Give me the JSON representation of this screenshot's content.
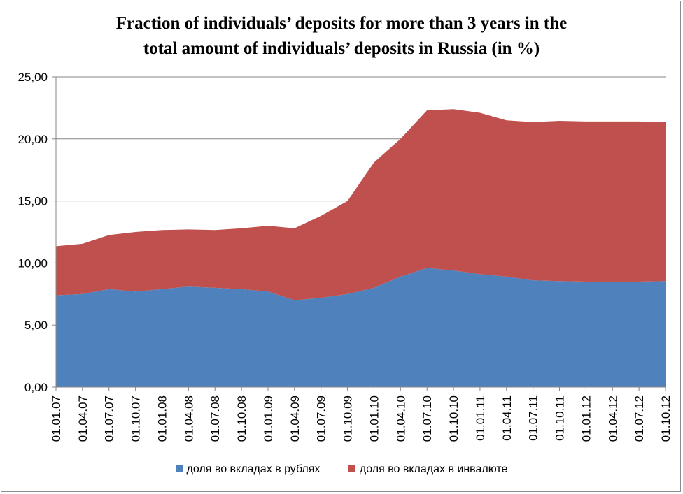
{
  "chart_data": {
    "type": "area",
    "stacked": true,
    "title_lines": [
      "Fraction of individuals’ deposits for more than 3 years in the",
      "total amount of individuals’ deposits in Russia (in %)"
    ],
    "categories": [
      "01.01.07",
      "01.04.07",
      "01.07.07",
      "01.10.07",
      "01.01.08",
      "01.04.08",
      "01.07.08",
      "01.10.08",
      "01.01.09",
      "01.04.09",
      "01.07.09",
      "01.10.09",
      "01.01.10",
      "01.04.10",
      "01.07.10",
      "01.10.10",
      "01.01.11",
      "01.04.11",
      "01.07.11",
      "01.10.11",
      "01.01.12",
      "01.04.12",
      "01.07.12",
      "01.10.12"
    ],
    "y_ticks": [
      "0,00",
      "5,00",
      "10,00",
      "15,00",
      "20,00",
      "25,00"
    ],
    "ylim": [
      0,
      25
    ],
    "grid": "horizontal",
    "legend_position": "bottom",
    "series": [
      {
        "name": "доля во вкладах в рублях",
        "color": "#4f81bd",
        "values": [
          7.4,
          7.5,
          7.9,
          7.7,
          7.9,
          8.1,
          8.0,
          7.9,
          7.7,
          7.0,
          7.2,
          7.5,
          8.0,
          8.9,
          9.6,
          9.4,
          9.1,
          8.9,
          8.6,
          8.55,
          8.5,
          8.5,
          8.5,
          8.55
        ]
      },
      {
        "name": "доля во вкладах в инвалюте",
        "color": "#c0504d",
        "values": [
          3.95,
          4.05,
          4.35,
          4.8,
          4.75,
          4.6,
          4.65,
          4.9,
          5.3,
          5.8,
          6.6,
          7.5,
          10.1,
          11.1,
          12.7,
          13.0,
          13.0,
          12.6,
          12.75,
          12.9,
          12.9,
          12.9,
          12.9,
          12.8
        ]
      }
    ]
  }
}
